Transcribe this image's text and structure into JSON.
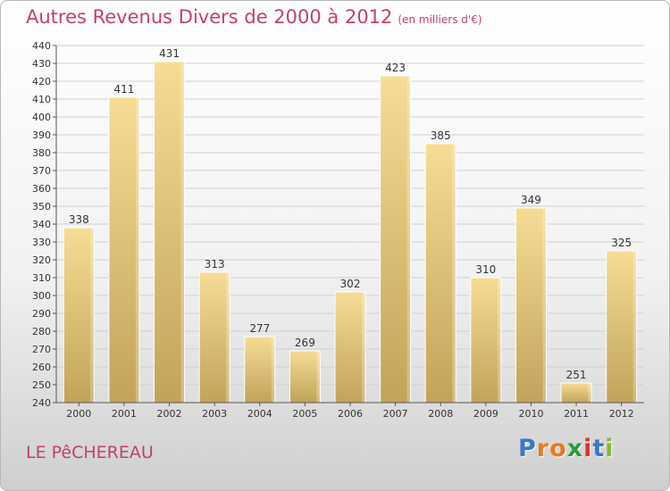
{
  "title": "Autres Revenus Divers de 2000 à 2012",
  "subtitle": "(en milliers d'€)",
  "location": "LE PêCHEREAU",
  "logo": {
    "letters": [
      "P",
      "r",
      "o",
      "x",
      "i",
      "t",
      "i"
    ],
    "colors": [
      "#3a78c8",
      "#e87a1e",
      "#e87a1e",
      "#2e9a3a",
      "#e0322e",
      "#3a78c8",
      "#8ab82e"
    ]
  },
  "colors": {
    "bar_light": "#f6dc95",
    "bar_dark": "#c2a35a",
    "grid": "#d0d0d0",
    "title": "#c04070"
  },
  "chart_data": {
    "type": "bar",
    "categories": [
      "2000",
      "2001",
      "2002",
      "2003",
      "2004",
      "2005",
      "2006",
      "2007",
      "2008",
      "2009",
      "2010",
      "2011",
      "2012"
    ],
    "values": [
      338,
      411,
      431,
      313,
      277,
      269,
      302,
      423,
      385,
      310,
      349,
      251,
      325
    ],
    "ylim": [
      240,
      440
    ],
    "yticks": [
      240,
      250,
      260,
      270,
      280,
      290,
      300,
      310,
      320,
      330,
      340,
      350,
      360,
      370,
      380,
      390,
      400,
      410,
      420,
      430,
      440
    ],
    "grid": true,
    "xlabel": "",
    "ylabel": ""
  }
}
